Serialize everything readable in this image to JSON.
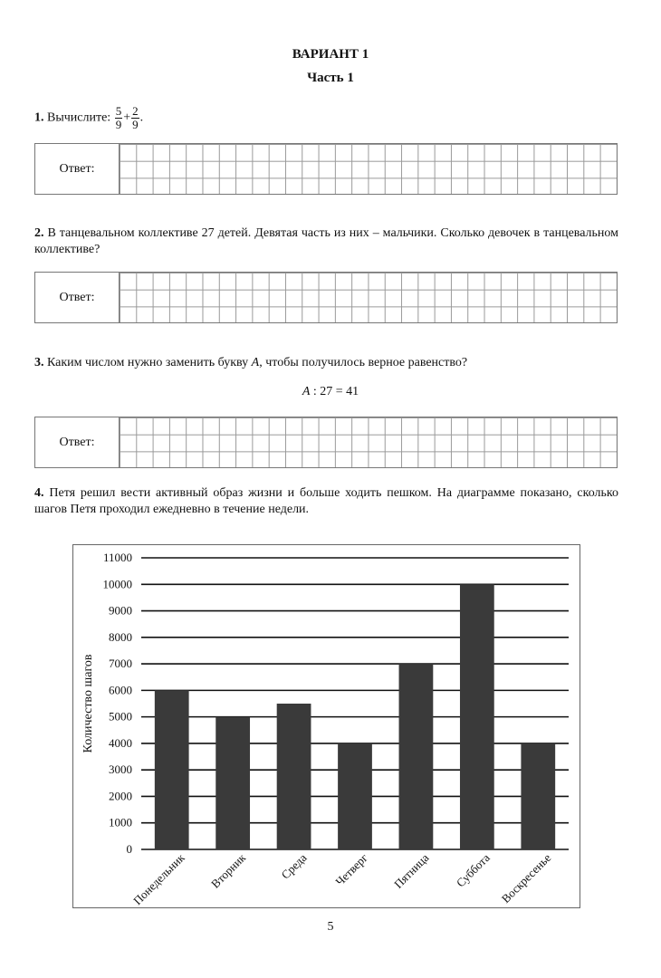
{
  "header": {
    "variant": "ВАРИАНТ 1",
    "part": "Часть 1"
  },
  "answer_label": "Ответ:",
  "questions": [
    {
      "number": "1.",
      "text": "Вычислите:",
      "fraction_a": {
        "num": "5",
        "den": "9"
      },
      "operator": "+",
      "fraction_b": {
        "num": "2",
        "den": "9"
      },
      "end": "."
    },
    {
      "number": "2.",
      "text": "В танцевальном коллективе 27 детей. Девятая часть из них – мальчики. Сколько девочек в танцевальном коллективе?"
    },
    {
      "number": "3.",
      "text": "Каким числом нужно заменить букву",
      "var": "A",
      "text_end": ", чтобы получилось верное равенство?",
      "equation_var": "A",
      "equation_rest": " : 27 = 41"
    },
    {
      "number": "4.",
      "text": "Петя решил вести активный образ жизни и больше ходить пешком. На диаграмме показано, сколько шагов Петя проходил ежедневно в течение недели."
    }
  ],
  "chart_data": {
    "type": "bar",
    "categories": [
      "Понедельник",
      "Вторник",
      "Среда",
      "Четверг",
      "Пятница",
      "Суббота",
      "Воскресенье"
    ],
    "values": [
      6000,
      5000,
      5500,
      4000,
      7000,
      10000,
      4000
    ],
    "ylabel": "Количество шагов",
    "xlabel": "",
    "ylim": [
      0,
      11000
    ],
    "yticks": [
      0,
      1000,
      2000,
      3000,
      4000,
      5000,
      6000,
      7000,
      8000,
      9000,
      10000,
      11000
    ],
    "grid": true,
    "bar_color": "#3a3a3a"
  },
  "page_number": "5"
}
